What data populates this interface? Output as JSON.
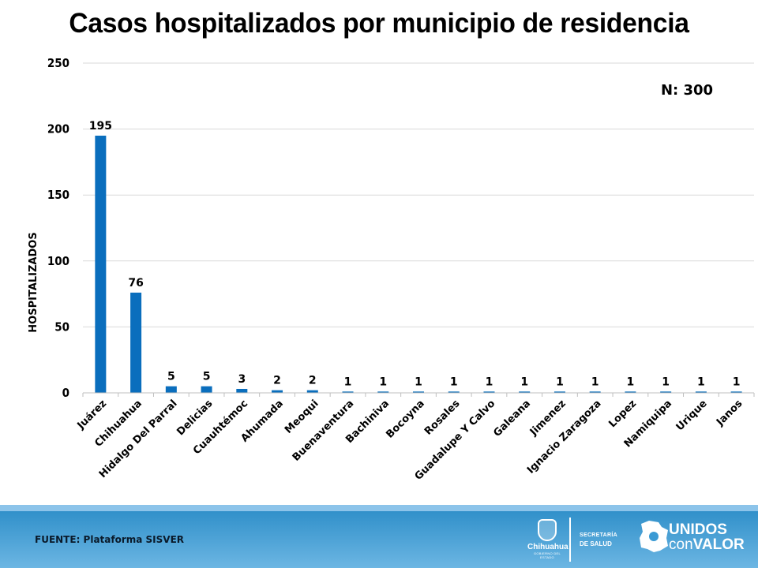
{
  "title": "Casos hospitalizados por municipio de residencia",
  "footer": {
    "source": "FUENTE: Plataforma SISVER",
    "logos": {
      "chihuahua": "Chihuahua",
      "chihuahua_sub": "GOBIERNO DEL ESTADO",
      "secretaria_line1": "SECRETARÍA",
      "secretaria_line2": "DE SALUD",
      "unidos_line1": "UNIDOS",
      "unidos_line2_a": "con",
      "unidos_line2_b": "VALOR"
    },
    "colors": {
      "band_top": "#2a8cc7",
      "band_bottom": "#6cb6e3",
      "strip": "#8cc4ea"
    }
  },
  "chart_data": {
    "type": "bar",
    "title": "Casos hospitalizados por municipio de residencia",
    "annotation": "N: 300",
    "xlabel": "",
    "ylabel": "HOSPITALIZADOS",
    "ylim": [
      0,
      250
    ],
    "yticks": [
      0,
      50,
      100,
      150,
      200,
      250
    ],
    "grid": true,
    "bar_color": "#0a6ebd",
    "categories": [
      "Juárez",
      "Chihuahua",
      "Hidalgo Del Parral",
      "Delicias",
      "Cuauhtémoc",
      "Ahumada",
      "Meoqui",
      "Buenaventura",
      "Bachiniva",
      "Bocoyna",
      "Rosales",
      "Guadalupe Y Calvo",
      "Galeana",
      "Jimenez",
      "Ignacio Zaragoza",
      "Lopez",
      "Namiquipa",
      "Urique",
      "Janos"
    ],
    "values": [
      195,
      76,
      5,
      5,
      3,
      2,
      2,
      1,
      1,
      1,
      1,
      1,
      1,
      1,
      1,
      1,
      1,
      1,
      1
    ]
  }
}
